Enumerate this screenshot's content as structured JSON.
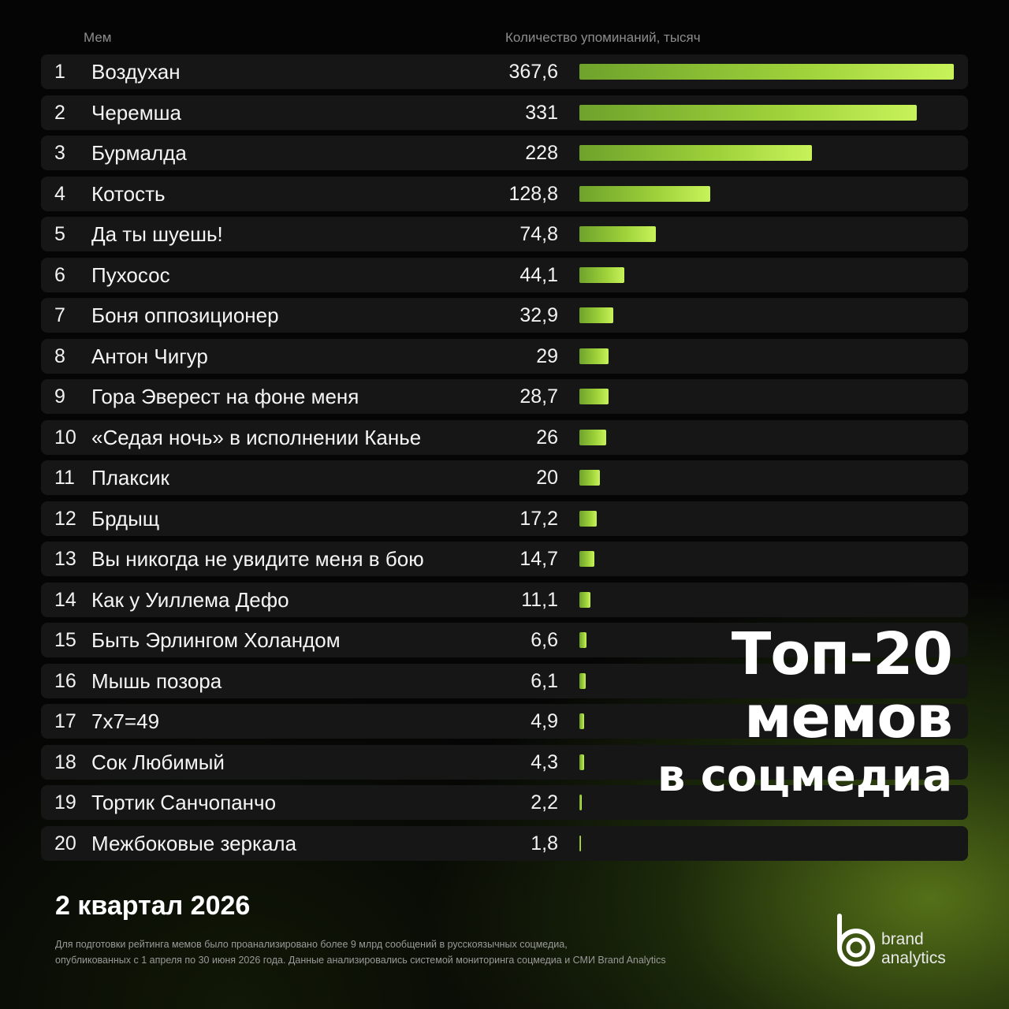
{
  "header": {
    "col_meme": "Мем",
    "col_count": "Количество упоминаний, тысяч"
  },
  "chart_data": {
    "type": "bar",
    "orientation": "horizontal",
    "xlim": [
      0,
      367.6
    ],
    "grid": false,
    "ranks": [
      "1",
      "2",
      "3",
      "4",
      "5",
      "6",
      "7",
      "8",
      "9",
      "10",
      "11",
      "12",
      "13",
      "14",
      "15",
      "16",
      "17",
      "18",
      "19",
      "20"
    ],
    "categories": [
      "Воздухан",
      "Черемша",
      "Бурмалда",
      "Котость",
      "Да ты шуешь!",
      "Пухосос",
      "Боня оппозиционер",
      "Антон Чигур",
      "Гора Эверест на фоне меня",
      "«Седая ночь» в исполнении Канье",
      "Плаксик",
      "Брдыщ",
      "Вы никогда не увидите меня в бою",
      "Как у Уиллема Дефо",
      "Быть Эрлингом Холандом",
      "Мышь позора",
      "7x7=49",
      "Сок Любимый",
      "Тортик Санчопанчо",
      "Межбоковые зеркала"
    ],
    "values": [
      367.6,
      331,
      228,
      128.8,
      74.8,
      44.1,
      32.9,
      29,
      28.7,
      26,
      20,
      17.2,
      14.7,
      11.1,
      6.6,
      6.1,
      4.9,
      4.3,
      2.2,
      1.8
    ],
    "value_labels": [
      "367,6",
      "331",
      "228",
      "128,8",
      "74,8",
      "44,1",
      "32,9",
      "29",
      "28,7",
      "26",
      "20",
      "17,2",
      "14,7",
      "11,1",
      "6,6",
      "6,1",
      "4,9",
      "4,3",
      "2,2",
      "1,8"
    ]
  },
  "title": {
    "line1": "Топ-20",
    "line2": "мемов",
    "line3": "в соцмедиа"
  },
  "period": "2 квартал 2026",
  "footnote": {
    "line1": "Для подготовки рейтинга мемов было проанализировано более 9 млрд сообщений в русскоязычных соцмедиа,",
    "line2": "опубликованных с 1 апреля по 30 июня 2026 года. Данные анализировались системой мониторинга соцмедиа и СМИ Brand Analytics"
  },
  "brand": {
    "line1": "brand",
    "line2": "analytics"
  },
  "colors": {
    "background": "#050505",
    "row_background": "#161616",
    "bar_start": "#6ea22b",
    "bar_end": "#c8f25a"
  }
}
